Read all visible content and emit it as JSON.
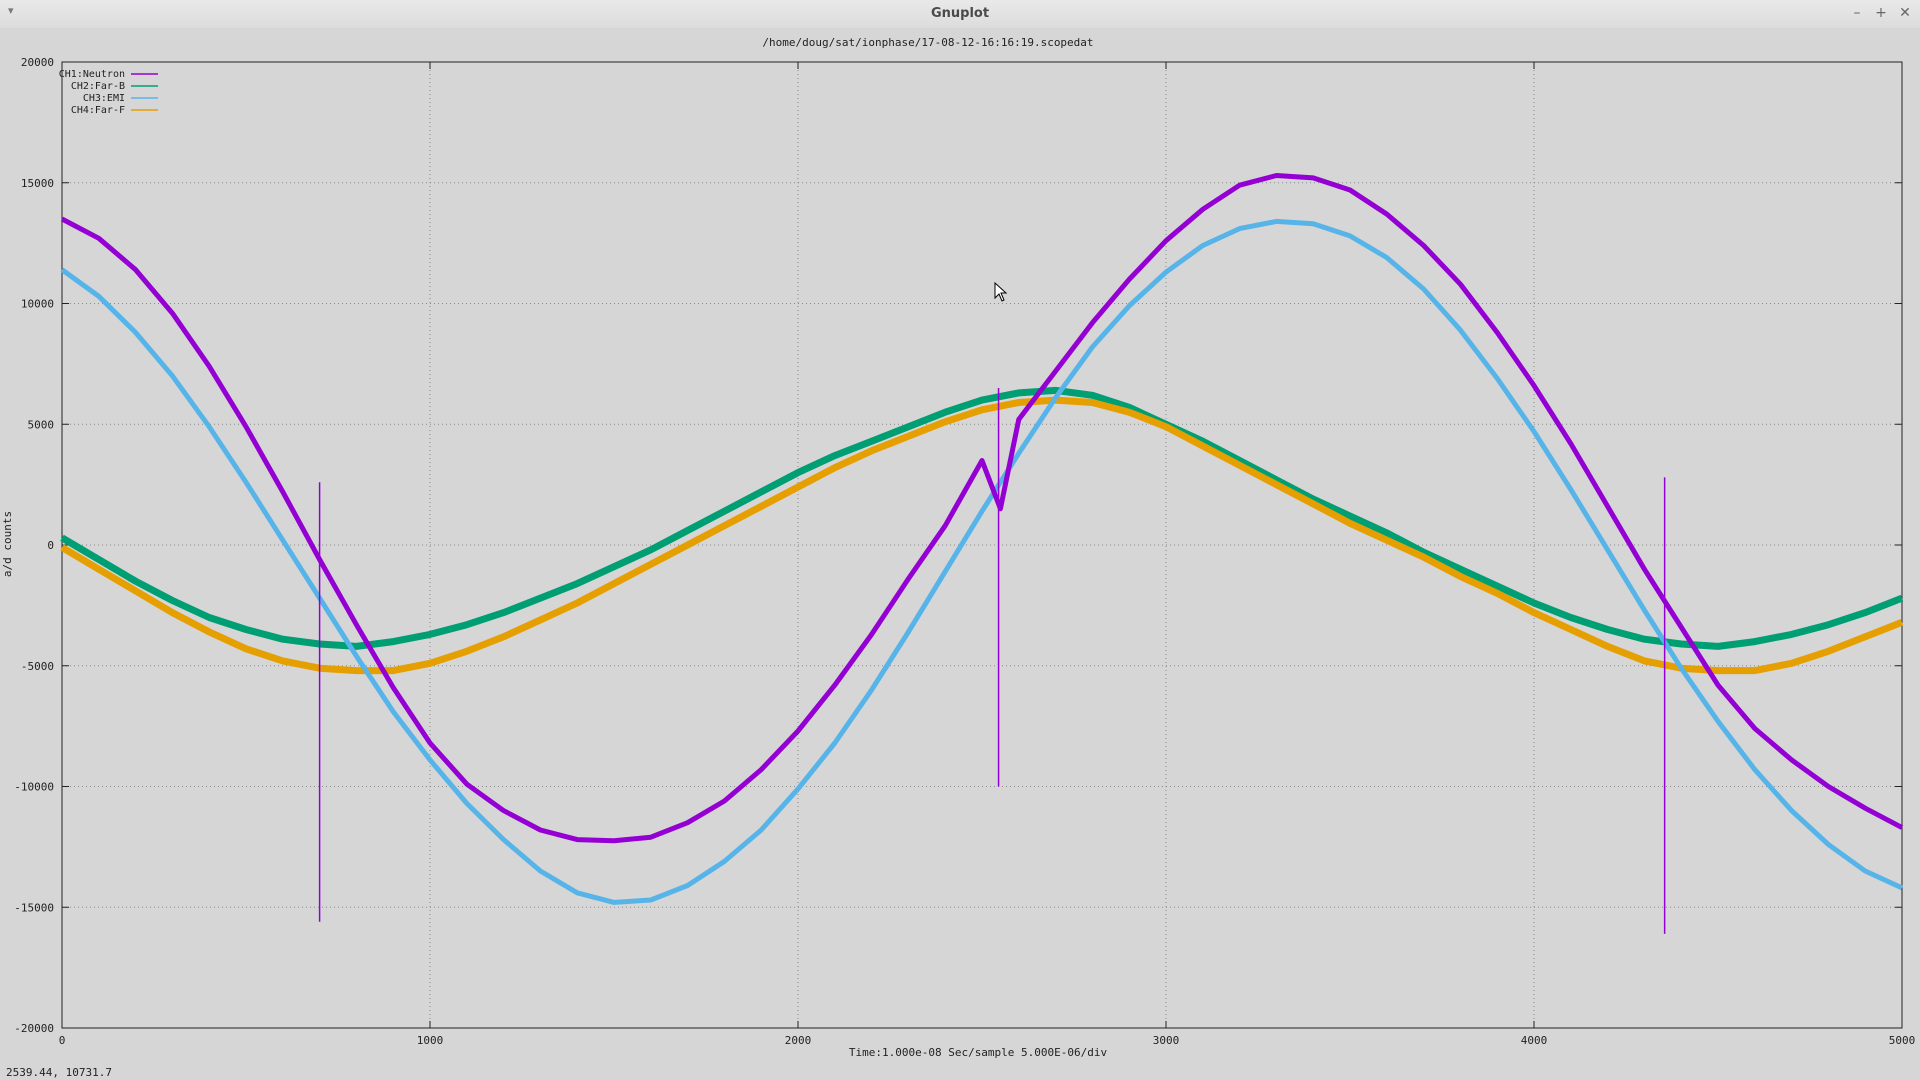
{
  "window": {
    "title": "Gnuplot",
    "menu_icon": "menu-arrow-icon",
    "buttons": [
      "minimize-icon",
      "maximize-icon",
      "close-icon"
    ],
    "button_glyphs": [
      "–",
      "+",
      "✕"
    ]
  },
  "status": {
    "coordinates": "2539.44,  10731.7"
  },
  "chart_data": {
    "type": "line",
    "title": "/home/doug/sat/ionphase/17-08-12-16:16:19.scopedat",
    "xlabel": "Time:1.000e-08 Sec/sample 5.000E-06/div",
    "ylabel": "a/d counts",
    "xlim": [
      0,
      5000
    ],
    "ylim": [
      -20000,
      20000
    ],
    "xticks": [
      0,
      1000,
      2000,
      3000,
      4000,
      5000
    ],
    "yticks": [
      -20000,
      -15000,
      -10000,
      -5000,
      0,
      5000,
      10000,
      15000,
      20000
    ],
    "grid": true,
    "legend_position": "top-left",
    "series": [
      {
        "name": "CH1:Neutron",
        "color": "#9400d3",
        "points": [
          [
            0,
            13500
          ],
          [
            100,
            12700
          ],
          [
            200,
            11400
          ],
          [
            300,
            9600
          ],
          [
            400,
            7400
          ],
          [
            500,
            4900
          ],
          [
            600,
            2200
          ],
          [
            700,
            -600
          ],
          [
            800,
            -3300
          ],
          [
            900,
            -5900
          ],
          [
            1000,
            -8200
          ],
          [
            1100,
            -9900
          ],
          [
            1200,
            -11000
          ],
          [
            1300,
            -11800
          ],
          [
            1400,
            -12200
          ],
          [
            1500,
            -12250
          ],
          [
            1600,
            -12100
          ],
          [
            1700,
            -11500
          ],
          [
            1800,
            -10600
          ],
          [
            1900,
            -9300
          ],
          [
            2000,
            -7700
          ],
          [
            2100,
            -5800
          ],
          [
            2200,
            -3700
          ],
          [
            2300,
            -1400
          ],
          [
            2400,
            800
          ],
          [
            2500,
            3500
          ],
          [
            2550,
            1500
          ],
          [
            2600,
            5200
          ],
          [
            2700,
            7200
          ],
          [
            2800,
            9200
          ],
          [
            2900,
            11000
          ],
          [
            3000,
            12600
          ],
          [
            3100,
            13900
          ],
          [
            3200,
            14900
          ],
          [
            3300,
            15300
          ],
          [
            3400,
            15200
          ],
          [
            3500,
            14700
          ],
          [
            3600,
            13700
          ],
          [
            3700,
            12400
          ],
          [
            3800,
            10800
          ],
          [
            3900,
            8800
          ],
          [
            4000,
            6600
          ],
          [
            4100,
            4200
          ],
          [
            4200,
            1600
          ],
          [
            4300,
            -1000
          ],
          [
            4400,
            -3400
          ],
          [
            4500,
            -5800
          ],
          [
            4600,
            -7600
          ],
          [
            4700,
            -8900
          ],
          [
            4800,
            -10000
          ],
          [
            4900,
            -10900
          ],
          [
            5000,
            -11700
          ]
        ],
        "spikes": [
          [
            700,
            -15600
          ],
          [
            705,
            2600
          ],
          [
            2545,
            -10000
          ],
          [
            2550,
            6500
          ],
          [
            4355,
            -16100
          ],
          [
            4360,
            2800
          ]
        ]
      },
      {
        "name": "CH2:Far-B",
        "color": "#009e73",
        "points": [
          [
            0,
            300
          ],
          [
            100,
            -600
          ],
          [
            200,
            -1500
          ],
          [
            300,
            -2300
          ],
          [
            400,
            -3000
          ],
          [
            500,
            -3500
          ],
          [
            600,
            -3900
          ],
          [
            700,
            -4100
          ],
          [
            800,
            -4200
          ],
          [
            900,
            -4000
          ],
          [
            1000,
            -3700
          ],
          [
            1100,
            -3300
          ],
          [
            1200,
            -2800
          ],
          [
            1300,
            -2200
          ],
          [
            1400,
            -1600
          ],
          [
            1500,
            -900
          ],
          [
            1600,
            -200
          ],
          [
            1700,
            600
          ],
          [
            1800,
            1400
          ],
          [
            1900,
            2200
          ],
          [
            2000,
            3000
          ],
          [
            2100,
            3700
          ],
          [
            2200,
            4300
          ],
          [
            2300,
            4900
          ],
          [
            2400,
            5500
          ],
          [
            2500,
            6000
          ],
          [
            2600,
            6300
          ],
          [
            2700,
            6400
          ],
          [
            2800,
            6200
          ],
          [
            2900,
            5700
          ],
          [
            3000,
            5000
          ],
          [
            3100,
            4300
          ],
          [
            3200,
            3500
          ],
          [
            3300,
            2700
          ],
          [
            3400,
            1900
          ],
          [
            3500,
            1200
          ],
          [
            3600,
            500
          ],
          [
            3700,
            -300
          ],
          [
            3800,
            -1000
          ],
          [
            3900,
            -1700
          ],
          [
            4000,
            -2400
          ],
          [
            4100,
            -3000
          ],
          [
            4200,
            -3500
          ],
          [
            4300,
            -3900
          ],
          [
            4400,
            -4100
          ],
          [
            4500,
            -4200
          ],
          [
            4600,
            -4000
          ],
          [
            4700,
            -3700
          ],
          [
            4800,
            -3300
          ],
          [
            4900,
            -2800
          ],
          [
            5000,
            -2200
          ]
        ]
      },
      {
        "name": "CH3:EMI",
        "color": "#56b4e9",
        "points": [
          [
            0,
            11400
          ],
          [
            100,
            10300
          ],
          [
            200,
            8800
          ],
          [
            300,
            7000
          ],
          [
            400,
            4900
          ],
          [
            500,
            2600
          ],
          [
            600,
            200
          ],
          [
            700,
            -2200
          ],
          [
            800,
            -4600
          ],
          [
            900,
            -6900
          ],
          [
            1000,
            -8900
          ],
          [
            1100,
            -10700
          ],
          [
            1200,
            -12200
          ],
          [
            1300,
            -13500
          ],
          [
            1400,
            -14400
          ],
          [
            1500,
            -14800
          ],
          [
            1600,
            -14700
          ],
          [
            1700,
            -14100
          ],
          [
            1800,
            -13100
          ],
          [
            1900,
            -11800
          ],
          [
            2000,
            -10100
          ],
          [
            2100,
            -8200
          ],
          [
            2200,
            -6000
          ],
          [
            2300,
            -3600
          ],
          [
            2400,
            -1100
          ],
          [
            2500,
            1400
          ],
          [
            2600,
            3800
          ],
          [
            2700,
            6100
          ],
          [
            2800,
            8200
          ],
          [
            2900,
            9900
          ],
          [
            3000,
            11300
          ],
          [
            3100,
            12400
          ],
          [
            3200,
            13100
          ],
          [
            3300,
            13400
          ],
          [
            3400,
            13300
          ],
          [
            3500,
            12800
          ],
          [
            3600,
            11900
          ],
          [
            3700,
            10600
          ],
          [
            3800,
            8900
          ],
          [
            3900,
            6900
          ],
          [
            4000,
            4700
          ],
          [
            4100,
            2300
          ],
          [
            4200,
            -200
          ],
          [
            4300,
            -2700
          ],
          [
            4400,
            -5100
          ],
          [
            4500,
            -7300
          ],
          [
            4600,
            -9300
          ],
          [
            4700,
            -11000
          ],
          [
            4800,
            -12400
          ],
          [
            4900,
            -13500
          ],
          [
            5000,
            -14200
          ]
        ]
      },
      {
        "name": "CH4:Far-F",
        "color": "#e69f00",
        "points": [
          [
            0,
            -100
          ],
          [
            100,
            -1000
          ],
          [
            200,
            -1900
          ],
          [
            300,
            -2800
          ],
          [
            400,
            -3600
          ],
          [
            500,
            -4300
          ],
          [
            600,
            -4800
          ],
          [
            700,
            -5100
          ],
          [
            800,
            -5200
          ],
          [
            900,
            -5200
          ],
          [
            1000,
            -4900
          ],
          [
            1100,
            -4400
          ],
          [
            1200,
            -3800
          ],
          [
            1300,
            -3100
          ],
          [
            1400,
            -2400
          ],
          [
            1500,
            -1600
          ],
          [
            1600,
            -800
          ],
          [
            1700,
            0
          ],
          [
            1800,
            800
          ],
          [
            1900,
            1600
          ],
          [
            2000,
            2400
          ],
          [
            2100,
            3200
          ],
          [
            2200,
            3900
          ],
          [
            2300,
            4500
          ],
          [
            2400,
            5100
          ],
          [
            2500,
            5600
          ],
          [
            2600,
            5900
          ],
          [
            2700,
            6000
          ],
          [
            2800,
            5900
          ],
          [
            2900,
            5500
          ],
          [
            3000,
            4900
          ],
          [
            3100,
            4100
          ],
          [
            3200,
            3300
          ],
          [
            3300,
            2500
          ],
          [
            3400,
            1700
          ],
          [
            3500,
            900
          ],
          [
            3600,
            200
          ],
          [
            3700,
            -500
          ],
          [
            3800,
            -1300
          ],
          [
            3900,
            -2000
          ],
          [
            4000,
            -2800
          ],
          [
            4100,
            -3500
          ],
          [
            4200,
            -4200
          ],
          [
            4300,
            -4800
          ],
          [
            4400,
            -5100
          ],
          [
            4500,
            -5200
          ],
          [
            4600,
            -5200
          ],
          [
            4700,
            -4900
          ],
          [
            4800,
            -4400
          ],
          [
            4900,
            -3800
          ],
          [
            5000,
            -3200
          ]
        ]
      }
    ]
  }
}
